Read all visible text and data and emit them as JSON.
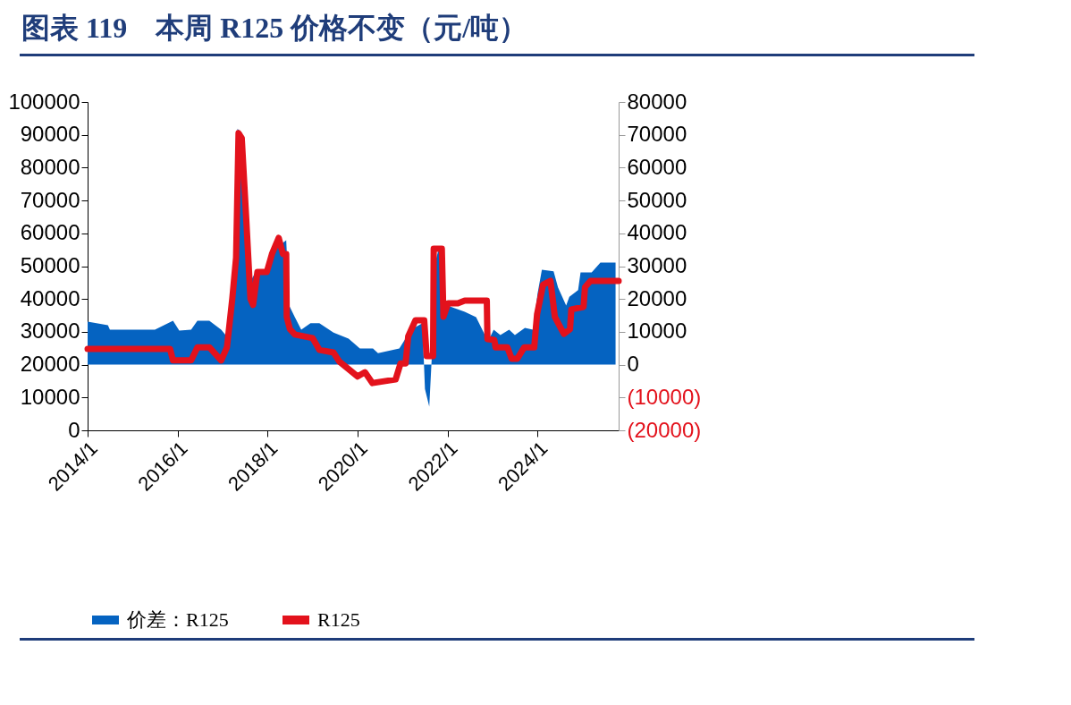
{
  "chart_data": {
    "type": "line",
    "title": "图表 119　本周 R125 价格不变（元/吨）",
    "xlim": [
      "2014-01-01",
      "2025-10-20"
    ],
    "xticks": [
      {
        "value": "2014-01-01",
        "label": "2014/1"
      },
      {
        "value": "2016-01-01",
        "label": "2016/1"
      },
      {
        "value": "2018-01-01",
        "label": "2018/1"
      },
      {
        "value": "2020-01-01",
        "label": "2020/1"
      },
      {
        "value": "2022-01-01",
        "label": "2022/1"
      },
      {
        "value": "2024-01-01",
        "label": "2024/1"
      }
    ],
    "ylim": [
      0,
      100000
    ],
    "yticks": [
      0,
      10000,
      20000,
      30000,
      40000,
      50000,
      60000,
      70000,
      80000,
      90000,
      100000
    ],
    "y2lim": [
      -20000,
      80000
    ],
    "y2ticks": [
      {
        "value": -20000,
        "label": "(20000)"
      },
      {
        "value": -10000,
        "label": "(10000)"
      },
      0,
      10000,
      20000,
      30000,
      40000,
      50000,
      60000,
      70000,
      80000
    ],
    "legend": "bottom",
    "grid": false,
    "series": [
      {
        "name": "价差：R125",
        "type": "area",
        "axis": "y2",
        "color": "#0563c1",
        "x": [
          "2014-01-01",
          "2014-06-15",
          "2014-07-01",
          "2015-07-01",
          "2015-11-25",
          "2016-01-15",
          "2016-04-20",
          "2016-06-10",
          "2016-09-15",
          "2016-12-20",
          "2017-01-25",
          "2017-03-05",
          "2017-04-10",
          "2017-05-01",
          "2017-06-05",
          "2017-07-10",
          "2017-08-15",
          "2017-10-05",
          "2018-01-08",
          "2018-03-01",
          "2018-06-01",
          "2018-06-25",
          "2018-08-10",
          "2018-10-01",
          "2018-12-15",
          "2019-02-25",
          "2019-06-20",
          "2019-10-20",
          "2020-01-20",
          "2020-05-05",
          "2020-06-15",
          "2020-12-05",
          "2021-03-10",
          "2021-06-10",
          "2021-07-01",
          "2021-08-05",
          "2021-09-05",
          "2021-09-20",
          "2021-10-20",
          "2021-11-25",
          "2022-01-01",
          "2022-05-20",
          "2022-08-20",
          "2022-11-25",
          "2023-01-10",
          "2023-03-05",
          "2023-05-15",
          "2023-07-01",
          "2023-09-20",
          "2023-11-25",
          "2024-01-01",
          "2024-02-05",
          "2024-05-10",
          "2024-06-15",
          "2024-08-20",
          "2024-09-15",
          "2024-11-25",
          "2024-12-15",
          "2025-03-15",
          "2025-05-25",
          "2025-09-25"
        ],
        "values": [
          13100,
          12000,
          10650,
          10650,
          13400,
          10400,
          10650,
          13400,
          13400,
          10650,
          9000,
          15300,
          36300,
          71800,
          70700,
          51600,
          25400,
          28900,
          28900,
          35200,
          37900,
          18000,
          14500,
          10650,
          12600,
          12600,
          9800,
          7900,
          4900,
          4900,
          3500,
          4900,
          10650,
          12600,
          -7400,
          -12800,
          10000,
          30800,
          35200,
          19900,
          18000,
          16100,
          14500,
          7100,
          10650,
          9000,
          10650,
          9000,
          11200,
          10650,
          21600,
          28900,
          28400,
          23500,
          18000,
          20700,
          22700,
          28100,
          28100,
          31100,
          31100
        ]
      },
      {
        "name": "R125",
        "type": "line",
        "color": "#e3121c",
        "x": [
          "2014-01-01",
          "2015-11-01",
          "2015-11-25",
          "2016-04-20",
          "2016-06-10",
          "2016-09-15",
          "2016-12-20",
          "2017-02-05",
          "2017-03-20",
          "2017-04-20",
          "2017-05-10",
          "2017-06-05",
          "2017-07-10",
          "2017-08-15",
          "2017-09-05",
          "2017-10-10",
          "2017-12-25",
          "2018-02-05",
          "2018-04-01",
          "2018-05-05",
          "2018-06-01",
          "2018-06-05",
          "2018-07-01",
          "2018-08-10",
          "2019-01-01",
          "2019-02-25",
          "2019-06-20",
          "2019-08-05",
          "2020-01-01",
          "2020-03-01",
          "2020-05-01",
          "2020-11-05",
          "2020-12-15",
          "2021-01-25",
          "2021-02-15",
          "2021-04-15",
          "2021-06-25",
          "2021-07-15",
          "2021-09-05",
          "2021-09-10",
          "2021-11-15",
          "2021-11-28",
          "2022-01-05",
          "2022-03-25",
          "2022-05-20",
          "2022-11-15",
          "2022-11-20",
          "2023-01-15",
          "2023-01-25",
          "2023-05-01",
          "2023-06-05",
          "2023-07-20",
          "2023-09-15",
          "2023-12-05",
          "2023-12-28",
          "2024-02-15",
          "2024-04-15",
          "2024-05-20",
          "2024-08-01",
          "2024-09-20",
          "2024-10-01",
          "2025-01-08",
          "2025-01-20",
          "2025-03-05",
          "2025-10-20"
        ],
        "values": [
          24800,
          24800,
          21300,
          21300,
          25300,
          25300,
          21300,
          25300,
          40000,
          52600,
          90500,
          89000,
          65400,
          40000,
          38200,
          48200,
          48200,
          53700,
          58600,
          53700,
          53700,
          34600,
          30800,
          29200,
          28100,
          24500,
          23700,
          21000,
          16400,
          17700,
          14400,
          15500,
          20400,
          20400,
          28600,
          33500,
          33500,
          22600,
          22600,
          55300,
          55300,
          34600,
          38700,
          38700,
          39500,
          39500,
          27800,
          27500,
          25300,
          25300,
          21800,
          21800,
          25300,
          25300,
          35400,
          44400,
          45500,
          34600,
          29400,
          30800,
          36800,
          37600,
          43600,
          45500,
          45500
        ]
      }
    ]
  }
}
